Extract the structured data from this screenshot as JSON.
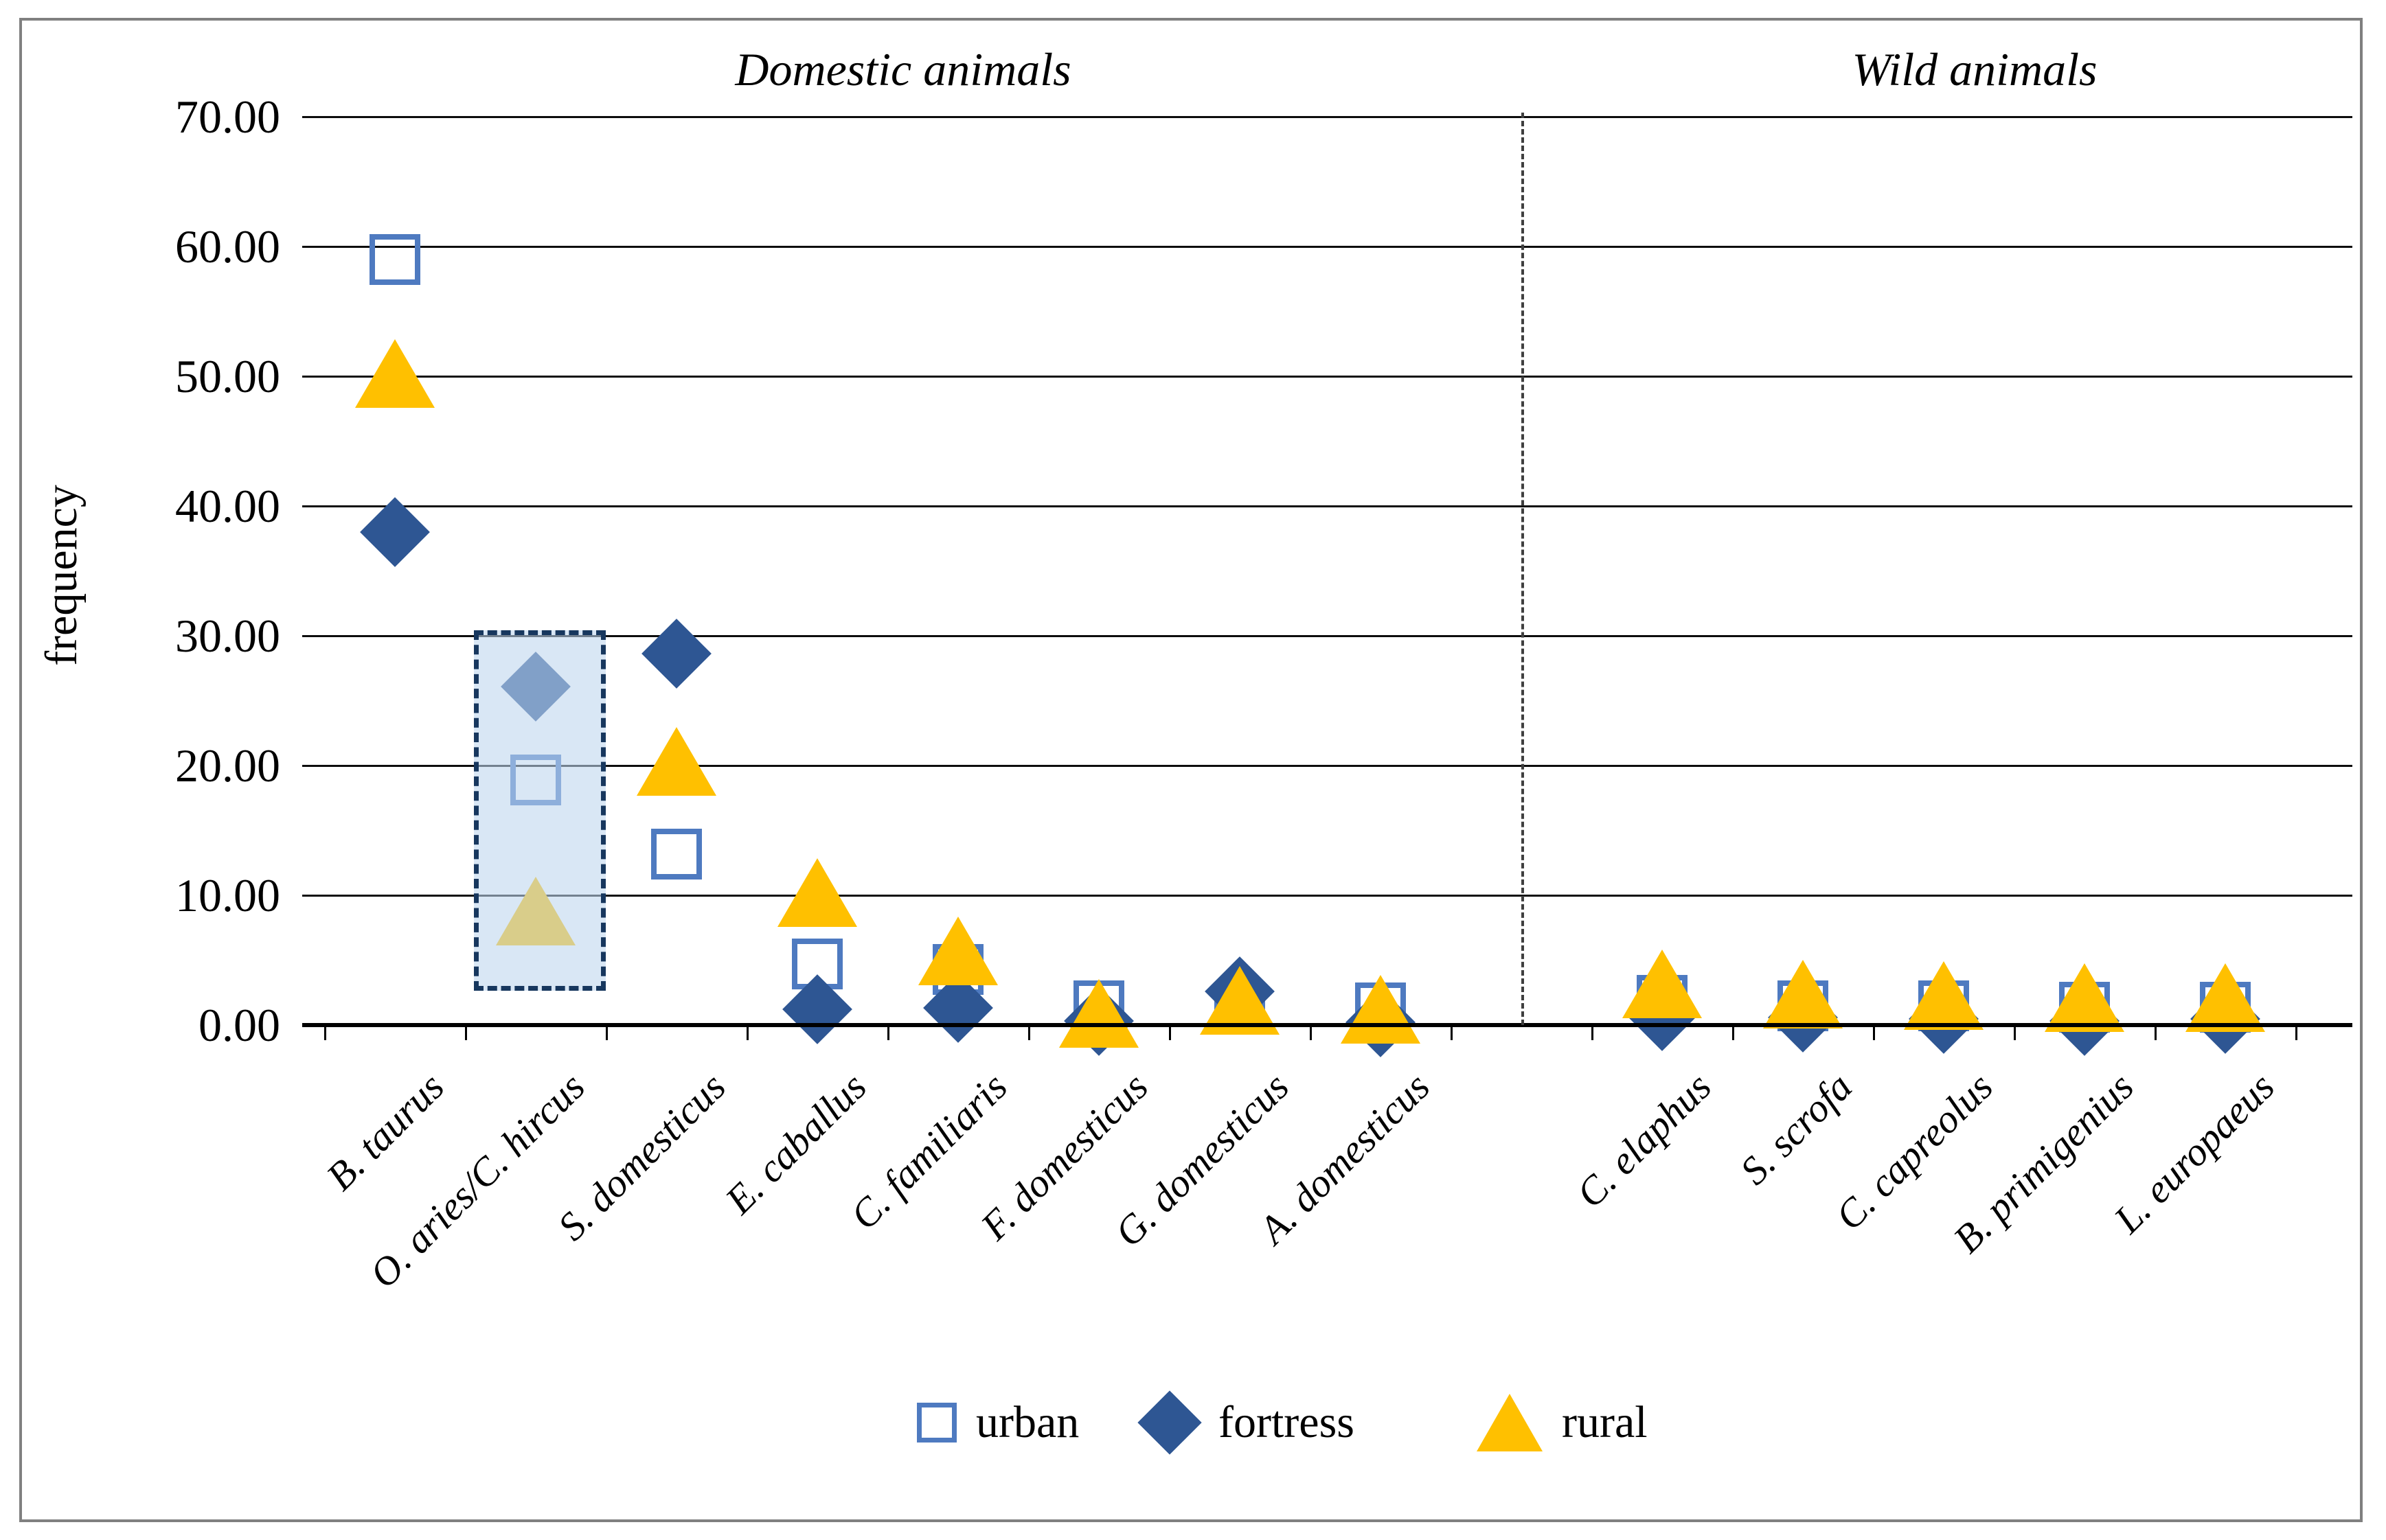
{
  "figure": {
    "y_axis_label": "frequency",
    "background": "#ffffff",
    "frame_color": "#808080",
    "legend": {
      "items": [
        {
          "label": "urban",
          "marker": "open-square-icon"
        },
        {
          "label": "fortress",
          "marker": "diamond-icon"
        },
        {
          "label": "rural",
          "marker": "triangle-icon"
        }
      ]
    }
  },
  "chart_data": {
    "type": "scatter",
    "title": "",
    "xlabel": "",
    "ylabel": "frequency",
    "ylim": [
      0,
      70
    ],
    "yticks": [
      "70.00",
      "60.00",
      "50.00",
      "40.00",
      "30.00",
      "20.00",
      "10.00",
      "0.00"
    ],
    "grid": "horizontal black gridlines at every 10 units",
    "legend_position": "bottom center",
    "sections": [
      {
        "label": "Domestic animals",
        "count": 8
      },
      {
        "label": "Wild animals",
        "count": 5
      }
    ],
    "section_divider": "vertical dashed line between A. domesticus and C. elaphus",
    "categories": [
      "B. taurus",
      "O. aries/C. hircus",
      "S. domesticus",
      "E. caballus",
      "C. familiaris",
      "F. domesticus",
      "G. domesticus",
      "A. domesticus",
      "C. elaphus",
      "S. scrofa",
      "C. capreolus",
      "B. primigenius",
      "L. europaeus"
    ],
    "series": [
      {
        "name": "urban",
        "marker": "open-square",
        "color": "#4E7AC0",
        "values": [
          59.0,
          18.9,
          13.2,
          4.7,
          4.3,
          1.5,
          1.4,
          1.3,
          1.9,
          1.5,
          1.5,
          1.4,
          1.4
        ]
      },
      {
        "name": "fortress",
        "marker": "filled-diamond",
        "color": "#2E5693",
        "values": [
          38.0,
          26.1,
          28.6,
          1.2,
          1.3,
          0.3,
          2.6,
          0.2,
          0.7,
          0.6,
          0.5,
          0.3,
          0.5
        ]
      },
      {
        "name": "rural",
        "marker": "filled-triangle",
        "color": "#FFC000",
        "values": [
          50.2,
          8.8,
          20.3,
          10.2,
          5.7,
          0.9,
          1.9,
          1.2,
          3.2,
          2.4,
          2.3,
          2.1,
          2.1
        ]
      }
    ],
    "highlight_box": {
      "category": "O. aries/C. hircus",
      "category_index": 1,
      "value_range": [
        3.4,
        30.4
      ],
      "fill": "rgba(189,214,238,0.58)",
      "border": "#17375E dashed"
    }
  }
}
